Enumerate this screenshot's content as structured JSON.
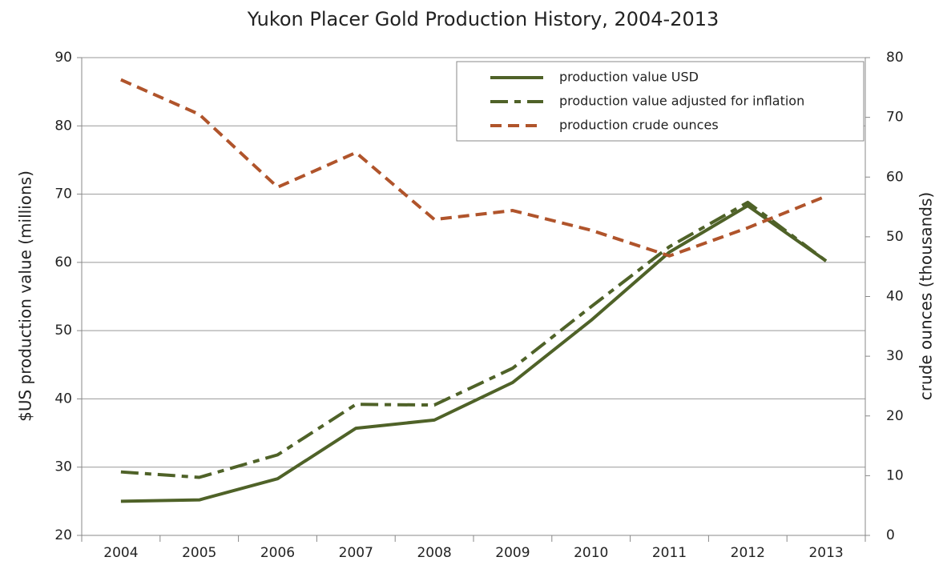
{
  "chart_data": {
    "type": "line",
    "title": "Yukon Placer Gold Production History, 2004-2013",
    "y_label": "$US production value (millions)",
    "y2_label": "crude ounces (thousands)",
    "categories": [
      "2004",
      "2005",
      "2006",
      "2007",
      "2008",
      "2009",
      "2010",
      "2011",
      "2012",
      "2013"
    ],
    "series": [
      {
        "name": "production value USD",
        "color": "#4f6228",
        "dash": "solid",
        "values": [
          25.0,
          25.2,
          28.3,
          35.7,
          36.9,
          42.4,
          51.5,
          61.5,
          68.3,
          60.2
        ]
      },
      {
        "name": "production value adjusted for inflation",
        "color": "#4f6228",
        "dash": "dashdot",
        "values": [
          29.3,
          28.5,
          31.8,
          39.2,
          39.1,
          44.5,
          53.5,
          62.3,
          68.8,
          60.2
        ]
      },
      {
        "name": "production crude ounces",
        "color": "#b0542b",
        "dash": "dashed",
        "axis": "y2",
        "values": [
          76.3,
          70.5,
          58.3,
          64.1,
          52.9,
          54.4,
          51.1,
          46.8,
          51.5,
          56.8
        ]
      }
    ],
    "ylim": [
      20,
      90
    ],
    "yticks": [
      20,
      30,
      40,
      50,
      60,
      70,
      80,
      90
    ],
    "y2lim": [
      0,
      80
    ],
    "y2ticks": [
      0,
      10,
      20,
      30,
      40,
      50,
      60,
      70,
      80
    ],
    "grid": true,
    "legend": "upper right"
  }
}
